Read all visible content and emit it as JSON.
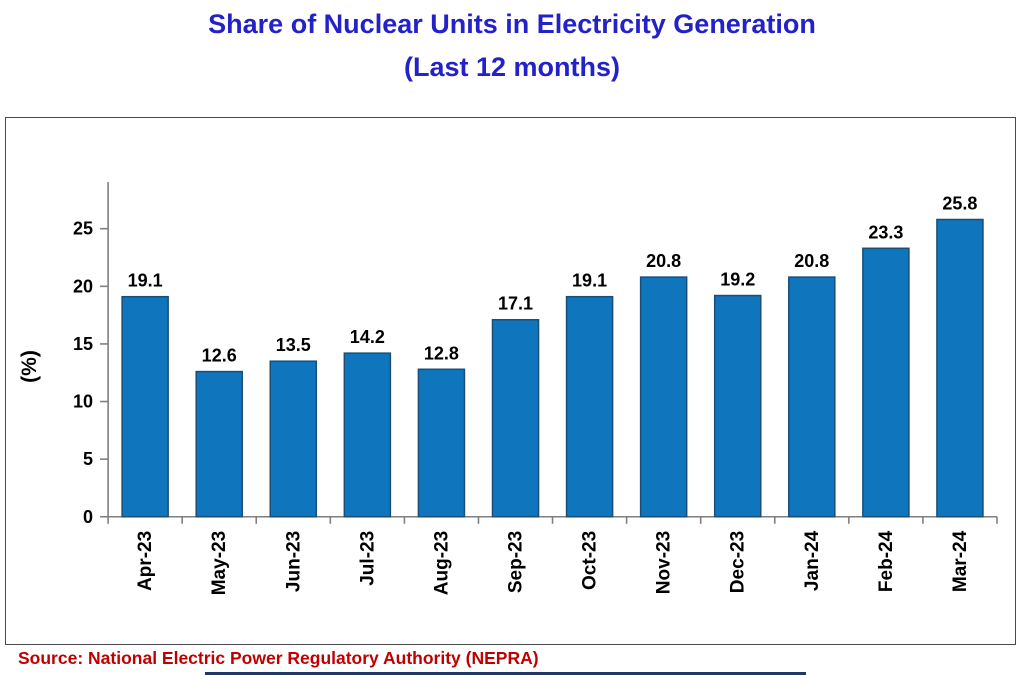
{
  "title": {
    "line1": "Share of Nuclear Units in Electricity Generation",
    "line2": "(Last 12 months)"
  },
  "chart_data": {
    "type": "bar",
    "title": "Share of Nuclear Units in Electricity Generation (Last 12 months)",
    "categories": [
      "Apr-23",
      "May-23",
      "Jun-23",
      "Jul-23",
      "Aug-23",
      "Sep-23",
      "Oct-23",
      "Nov-23",
      "Dec-23",
      "Jan-24",
      "Feb-24",
      "Mar-24"
    ],
    "values": [
      19.1,
      12.6,
      13.5,
      14.2,
      12.8,
      17.1,
      19.1,
      20.8,
      19.2,
      20.8,
      23.3,
      25.8
    ],
    "xlabel": "",
    "ylabel": "(%)",
    "ylim": [
      0,
      29
    ],
    "yticks": [
      0,
      5,
      10,
      15,
      20,
      25
    ],
    "grid": false,
    "legend": "none",
    "data_labels": true
  },
  "source": {
    "text": "Source: National Electric Power Regulatory Authority (NEPRA)"
  },
  "colors": {
    "title_text": "#2222C8",
    "bar_fill": "#0F76BD",
    "bar_border": "#1A4E79",
    "axis": "#7F7F7F",
    "label_text": "#000000",
    "source_text": "#C00000",
    "bottom_banner": "#1F3864"
  }
}
